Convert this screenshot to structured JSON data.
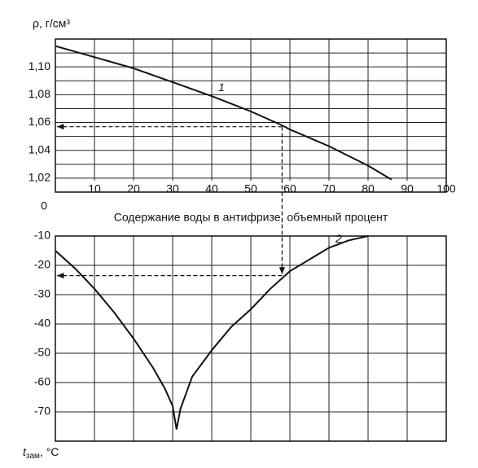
{
  "chart_data": [
    {
      "type": "line",
      "y_label": "ρ, г/см³",
      "xlim": [
        0,
        100
      ],
      "ylim": [
        1.01,
        1.12
      ],
      "xticks": [
        0,
        10,
        20,
        30,
        40,
        50,
        60,
        70,
        80,
        90,
        100
      ],
      "yticks": [
        {
          "value": 1.02,
          "label": "1,02"
        },
        {
          "value": 1.04,
          "label": "1,04"
        },
        {
          "value": 1.06,
          "label": "1,06"
        },
        {
          "value": 1.08,
          "label": "1,08"
        },
        {
          "value": 1.1,
          "label": "1,10"
        }
      ],
      "minor_yticks": [
        1.01,
        1.03,
        1.05,
        1.07,
        1.09,
        1.11
      ],
      "x_label": "Содержание воды в антифризе, объемный процент",
      "grid": true,
      "x": [
        0,
        10,
        20,
        30,
        40,
        50,
        58,
        60,
        70,
        80,
        86
      ],
      "series": [
        {
          "name": "1",
          "color": "#111111",
          "values": [
            1.115,
            1.107,
            1.099,
            1.089,
            1.079,
            1.068,
            1.058,
            1.055,
            1.043,
            1.029,
            1.019
          ]
        }
      ],
      "reading": {
        "x": 58,
        "y": 1.057
      }
    },
    {
      "type": "line",
      "y_label": "t",
      "y_label_sub": "зам",
      "y_label_unit": ", °C",
      "xlim": [
        0,
        100
      ],
      "ylim": [
        -80,
        -10
      ],
      "xticks": [
        10,
        20,
        30,
        40,
        50,
        60,
        70,
        80,
        90
      ],
      "yticks": [
        -10,
        -20,
        -30,
        -40,
        -50,
        -60,
        -70
      ],
      "grid": true,
      "x": [
        0,
        5,
        10,
        15,
        20,
        25,
        28,
        30,
        31,
        32,
        35,
        40,
        45,
        50,
        55,
        60,
        65,
        70,
        75,
        80
      ],
      "series": [
        {
          "name": "2",
          "color": "#111111",
          "values": [
            -15,
            -21,
            -28,
            -36,
            -45,
            -55,
            -62,
            -68,
            -76,
            -69,
            -58,
            -49,
            -41,
            -35,
            -28,
            -22,
            -18,
            -14,
            -11.5,
            -10
          ]
        }
      ],
      "reading": {
        "x": 58,
        "y": -23.5
      }
    }
  ]
}
